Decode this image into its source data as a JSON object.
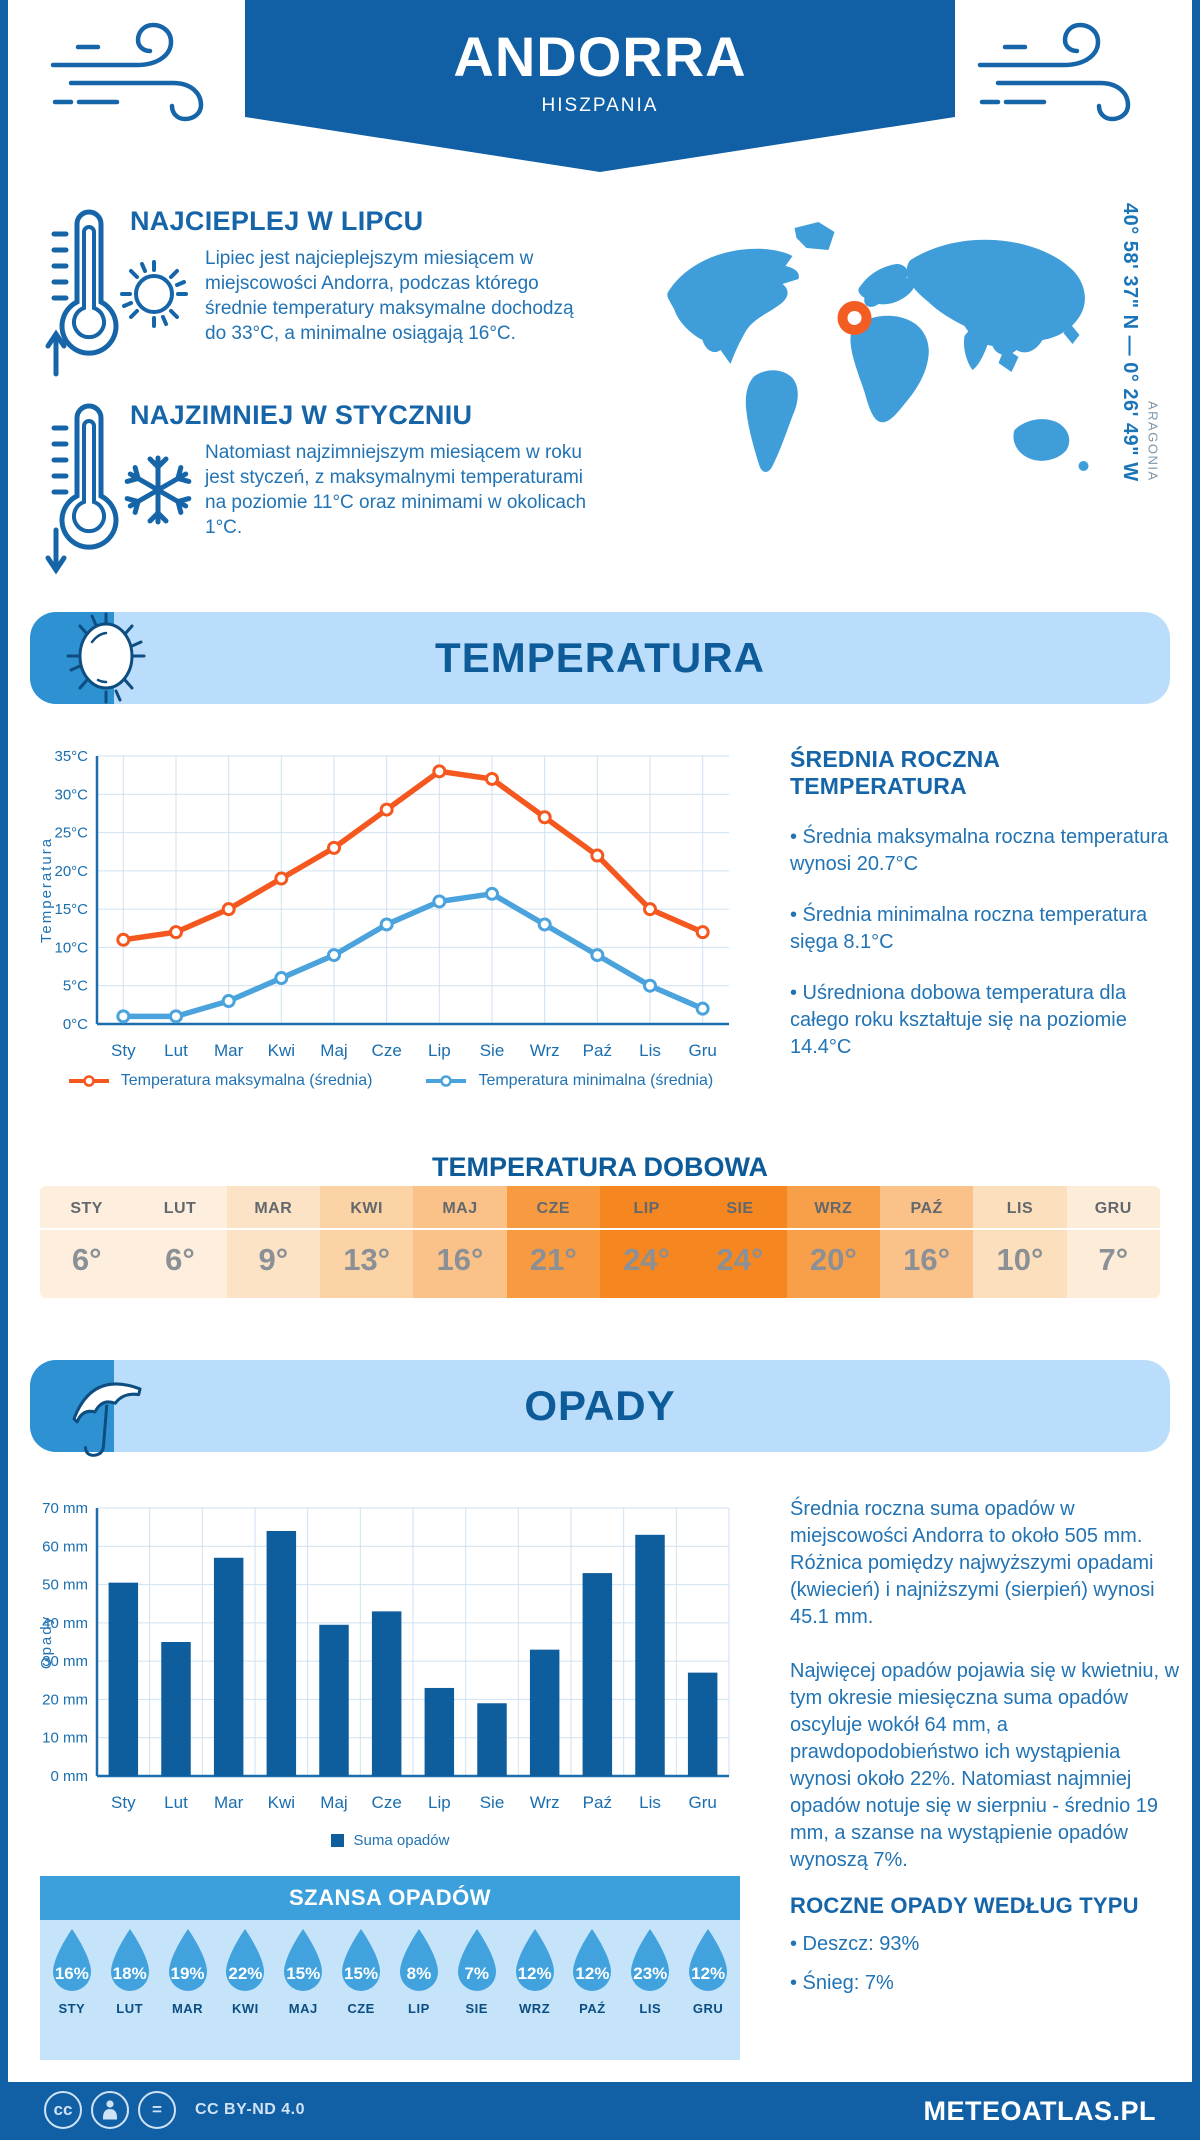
{
  "colors": {
    "brand_blue": "#1160a5",
    "heading_blue": "#1565a8",
    "body_blue": "#2173b4",
    "navy": "#0e5b9a",
    "banner_bg": "#b9ddfa",
    "banner_accent": "#2e91d2",
    "map_blue": "#3f9ed9",
    "marker_orange": "#f45d22",
    "max_line": "#f4581f",
    "min_line": "#4aa3dc",
    "bar_blue": "#0e5d9d",
    "axis_blue": "#1a6eae",
    "grid_blue": "#cfe2f2",
    "droplet": "#41a2de",
    "droplet_bg": "#c5e4f9",
    "chance_header_bg": "#3ba0dc",
    "table_text_month": "#63686d",
    "table_text_value": "#8b9096",
    "footer_icon": "#cfe3f5"
  },
  "header": {
    "title": "ANDORRA",
    "subtitle": "HISZPANIA"
  },
  "location": {
    "coordinates": "40° 58' 37\" N — 0° 26' 49\" W",
    "region": "ARAGONIA"
  },
  "highlights": [
    {
      "title": "NAJCIEPLEJ W LIPCU",
      "text": "Lipiec jest najcieplejszym miesiącem w miejscowości Andorra, podczas którego średnie temperatury maksymalne dochodzą do 33°C, a minimalne osiągają 16°C."
    },
    {
      "title": "NAJZIMNIEJ W STYCZNIU",
      "text": "Natomiast najzimniejszym miesiącem w roku jest styczeń, z maksymalnymi temperaturami na poziomie 11°C oraz minimami w okolicach 1°C."
    }
  ],
  "temperature_section": {
    "banner_title": "TEMPERATURA",
    "summary_title": "ŚREDNIA ROCZNA TEMPERATURA",
    "bullets": [
      "Średnia maksymalna roczna temperatura wynosi 20.7°C",
      "Średnia minimalna roczna temperatura sięga 8.1°C",
      "Uśredniona dobowa temperatura dla całego roku kształtuje się na poziomie 14.4°C"
    ]
  },
  "precipitation_section": {
    "banner_title": "OPADY",
    "paragraphs": [
      "Średnia roczna suma opadów w miejscowości Andorra to około 505 mm. Różnica pomiędzy najwyższymi opadami (kwiecień) i najniższymi (sierpień) wynosi 45.1 mm.",
      "Najwięcej opadów pojawia się w kwietniu, w tym okresie miesięczna suma opadów oscyluje wokół 64 mm, a prawdopodobieństwo ich wystąpienia wynosi około 22%. Natomiast najmniej opadów notuje się w sierpniu - średnio 19 mm, a szanse na wystąpienie opadów wynoszą 7%."
    ],
    "type_title": "ROCZNE OPADY WEDŁUG TYPU",
    "type_bullets": [
      "Deszcz: 93%",
      "Śnieg: 7%"
    ]
  },
  "footer": {
    "license": "CC BY-ND 4.0",
    "site": "METEOATLAS.PL"
  },
  "icons": {
    "top_left": "wind-icon",
    "top_right": "wind-icon",
    "warm_block": [
      "thermometer-up-icon",
      "sun-icon"
    ],
    "cold_block": [
      "thermometer-down-icon",
      "snowflake-icon"
    ],
    "temperature_banner": "sun-icon",
    "precipitation_banner": "umbrella-icon",
    "chance_block": "raindrop-icon",
    "map": "world-map",
    "map_marker": "location-ring-icon",
    "footer": [
      "cc-icon",
      "person-icon",
      "equals-icon"
    ]
  },
  "chart_data": [
    {
      "type": "line",
      "name": "monthly-temperature",
      "categories": [
        "Sty",
        "Lut",
        "Mar",
        "Kwi",
        "Maj",
        "Cze",
        "Lip",
        "Sie",
        "Wrz",
        "Paź",
        "Lis",
        "Gru"
      ],
      "series": [
        {
          "name": "Temperatura maksymalna (średnia)",
          "color": "#f4581f",
          "values": [
            11,
            12,
            15,
            19,
            23,
            28,
            33,
            32,
            27,
            22,
            15,
            12
          ]
        },
        {
          "name": "Temperatura minimalna (średnia)",
          "color": "#4aa3dc",
          "values": [
            1,
            1,
            3,
            6,
            9,
            13,
            16,
            17,
            13,
            9,
            5,
            2
          ]
        }
      ],
      "ylabel": "Temperatura",
      "ylim": [
        0,
        35
      ],
      "ytick_step": 5,
      "ytick_suffix": "°C",
      "grid": true,
      "legend_position": "bottom"
    },
    {
      "type": "bar",
      "name": "monthly-precipitation",
      "categories": [
        "Sty",
        "Lut",
        "Mar",
        "Kwi",
        "Maj",
        "Cze",
        "Lip",
        "Sie",
        "Wrz",
        "Paź",
        "Lis",
        "Gru"
      ],
      "series": [
        {
          "name": "Suma opadów",
          "color": "#0e5d9d",
          "values": [
            50.5,
            35,
            57,
            64,
            39.5,
            43,
            23,
            19,
            33,
            53,
            63,
            27
          ]
        }
      ],
      "ylabel": "Opady",
      "ylim": [
        0,
        70
      ],
      "ytick_step": 10,
      "ytick_suffix": " mm",
      "grid": true,
      "legend_position": "bottom"
    },
    {
      "type": "table",
      "name": "daily-temperature",
      "title": "TEMPERATURA DOBOWA",
      "categories": [
        "STY",
        "LUT",
        "MAR",
        "KWI",
        "MAJ",
        "CZE",
        "LIP",
        "SIE",
        "WRZ",
        "PAŹ",
        "LIS",
        "GRU"
      ],
      "values": [
        "6°",
        "6°",
        "9°",
        "13°",
        "16°",
        "21°",
        "24°",
        "24°",
        "20°",
        "16°",
        "10°",
        "7°"
      ],
      "cell_colors": [
        "#fdeedd",
        "#fdeedd",
        "#fce3c5",
        "#fbd3a4",
        "#fac288",
        "#f89a3f",
        "#f6861f",
        "#f6861f",
        "#f89f49",
        "#fac288",
        "#fcdfbd",
        "#fdecd8"
      ]
    },
    {
      "type": "table",
      "name": "precipitation-chance",
      "title": "SZANSA OPADÓW",
      "categories": [
        "STY",
        "LUT",
        "MAR",
        "KWI",
        "MAJ",
        "CZE",
        "LIP",
        "SIE",
        "WRZ",
        "PAŹ",
        "LIS",
        "GRU"
      ],
      "values": [
        "16%",
        "18%",
        "19%",
        "22%",
        "15%",
        "15%",
        "8%",
        "7%",
        "12%",
        "12%",
        "23%",
        "12%"
      ]
    }
  ]
}
